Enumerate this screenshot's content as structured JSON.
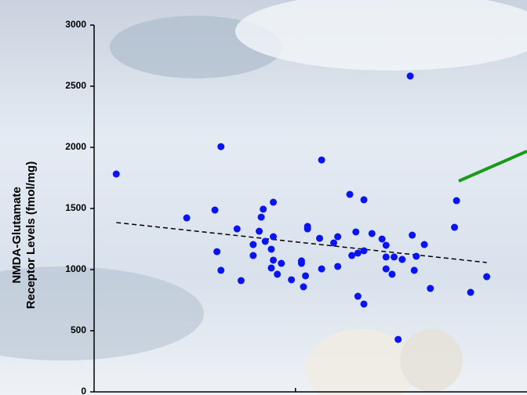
{
  "chart_data": {
    "type": "scatter",
    "y_label_lines": [
      "NMDA-Glutamate",
      "Receptor Levels (fmol/mg)"
    ],
    "color": "#0a14f0",
    "x": [
      0.11,
      0.46,
      0.6,
      0.63,
      0.61,
      0.63,
      0.71,
      0.73,
      0.79,
      0.79,
      0.83,
      0.84,
      0.82,
      0.85,
      0.88,
      0.88,
      0.89,
      0.89,
      0.89,
      0.91,
      0.93,
      0.98,
      1.03,
      1.03,
      1.04,
      1.05,
      1.06,
      1.06,
      1.13,
      1.12,
      1.13,
      1.19,
      1.21,
      1.21,
      1.27,
      1.28,
      1.3,
      1.31,
      1.34,
      1.34,
      1.31,
      1.34,
      1.38,
      1.43,
      1.45,
      1.45,
      1.45,
      1.48,
      1.49,
      1.53,
      1.57,
      1.58,
      1.59,
      1.6,
      1.64,
      1.51,
      1.67,
      1.79,
      1.8,
      1.87,
      1.95
    ],
    "values": [
      1782,
      1423,
      1487,
      2006,
      1147,
      994,
      1333,
      910,
      1205,
      1115,
      1429,
      1494,
      1314,
      1231,
      1013,
      1167,
      1269,
      1551,
      1077,
      962,
      1051,
      917,
      1051,
      1071,
      859,
      949,
      1333,
      1353,
      1897,
      1256,
      1006,
      1218,
      1269,
      1026,
      1615,
      1115,
      1308,
      1135,
      1571,
      1154,
      782,
      718,
      1295,
      1250,
      1199,
      1006,
      1103,
      962,
      1103,
      1083,
      2583,
      1282,
      994,
      1109,
      1205,
      429,
      846,
      1346,
      1564,
      814,
      942
    ],
    "trendline": {
      "x": [
        0.11,
        1.95
      ],
      "values": [
        1385,
        1058
      ]
    },
    "xlim": [
      0,
      2.15
    ],
    "xticks": [
      1
    ],
    "ylim": [
      0,
      3000
    ],
    "yticks": [
      0,
      500,
      1000,
      1500,
      2000,
      2500,
      3000
    ]
  }
}
